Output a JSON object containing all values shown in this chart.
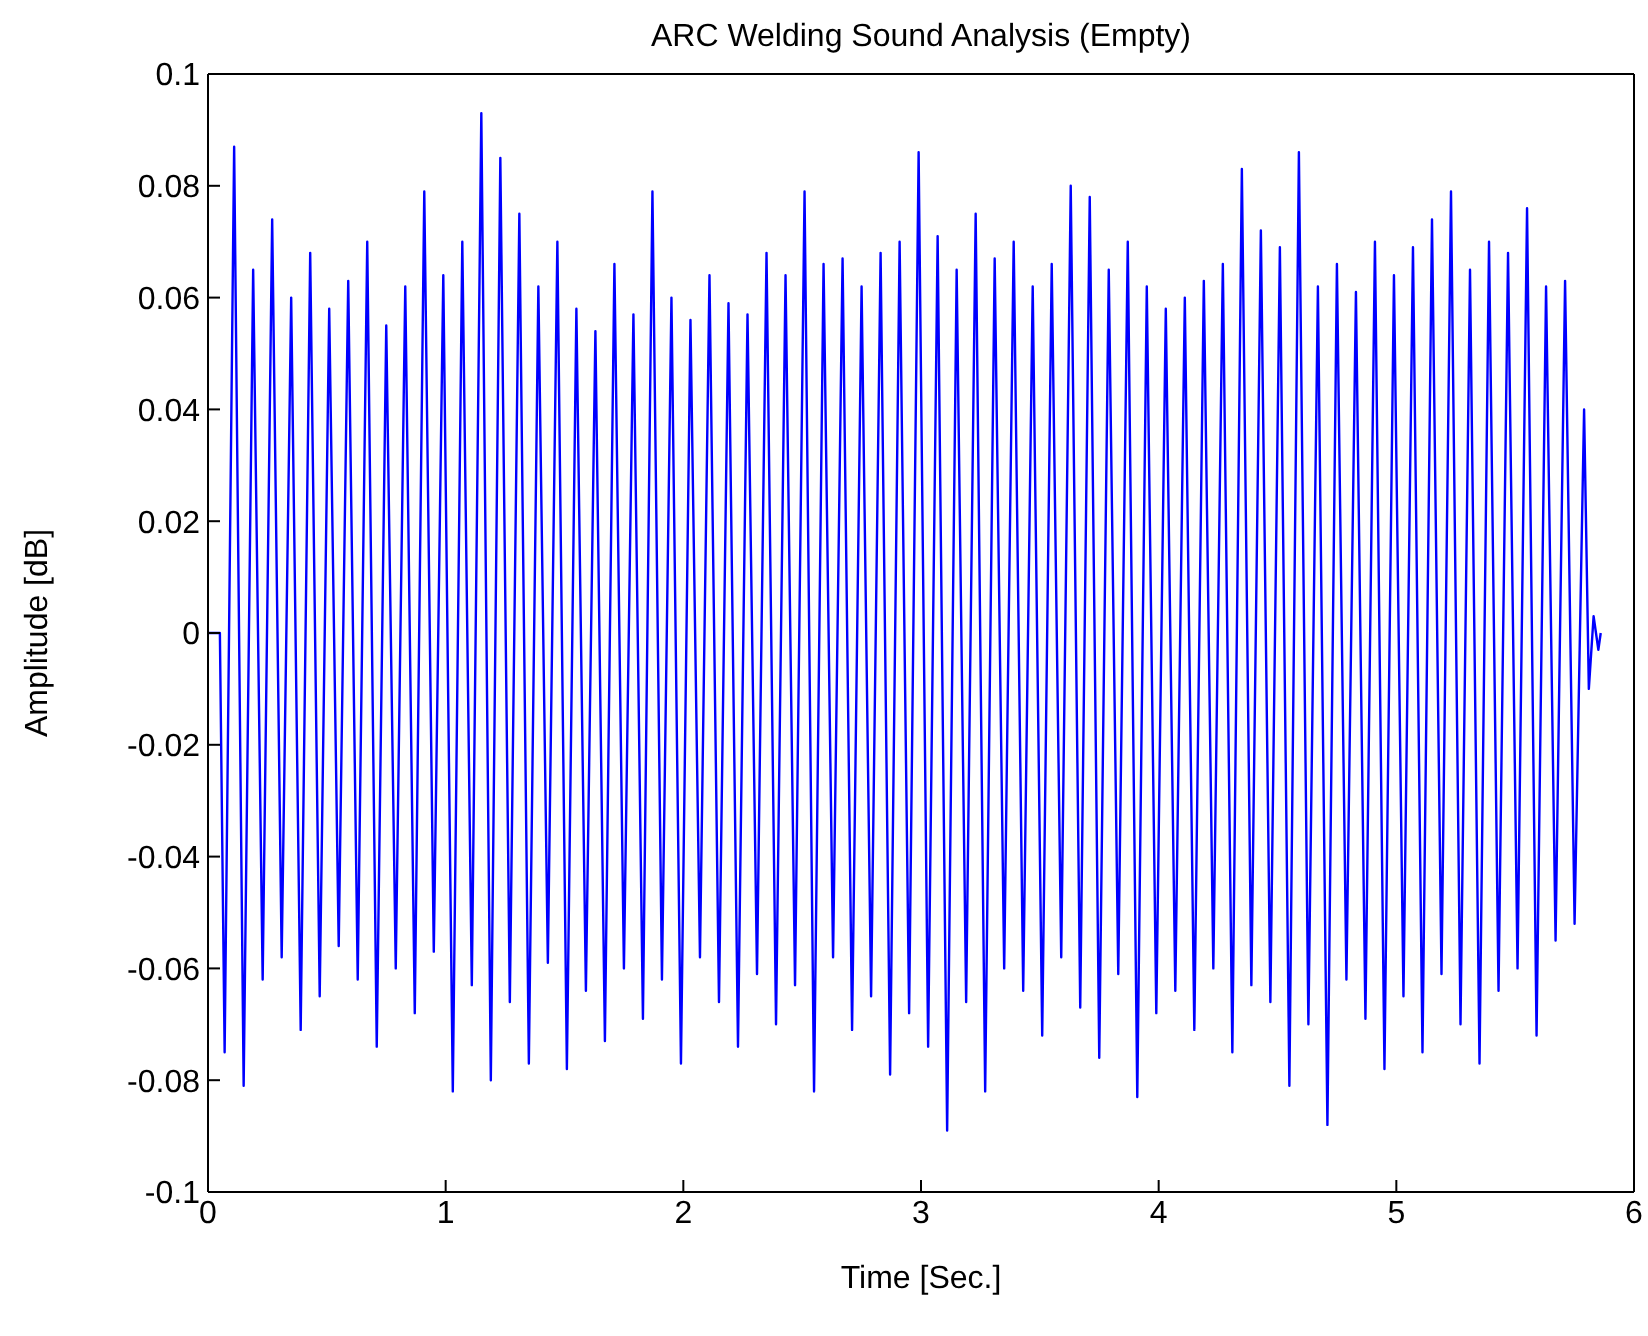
{
  "chart_data": {
    "type": "line",
    "title": "ARC Welding Sound Analysis (Empty)",
    "xlabel": "Time [Sec.]",
    "ylabel": "Amplitude [dB]",
    "xlim": [
      0,
      6
    ],
    "xticks": [
      0,
      1,
      2,
      3,
      4,
      5,
      6
    ],
    "ylim": [
      -0.1,
      0.1
    ],
    "yticks": [
      -0.1,
      -0.08,
      -0.06,
      -0.04,
      -0.02,
      0,
      0.02,
      0.04,
      0.06,
      0.08,
      0.1
    ],
    "legend": false,
    "marker": "none",
    "line_style": "solid",
    "series": [
      {
        "color": "#0000ff",
        "x": [
          0,
          0.05,
          0.07,
          0.11,
          0.15,
          0.19,
          0.23,
          0.27,
          0.31,
          0.35,
          0.39,
          0.43,
          0.47,
          0.51,
          0.55,
          0.59,
          0.63,
          0.67,
          0.71,
          0.75,
          0.79,
          0.83,
          0.87,
          0.91,
          0.95,
          0.99,
          1.03,
          1.07,
          1.11,
          1.15,
          1.19,
          1.23,
          1.27,
          1.31,
          1.35,
          1.39,
          1.43,
          1.47,
          1.51,
          1.55,
          1.59,
          1.63,
          1.67,
          1.71,
          1.75,
          1.79,
          1.83,
          1.87,
          1.91,
          1.95,
          1.99,
          2.03,
          2.07,
          2.11,
          2.15,
          2.19,
          2.23,
          2.27,
          2.31,
          2.35,
          2.39,
          2.43,
          2.47,
          2.51,
          2.55,
          2.59,
          2.63,
          2.67,
          2.71,
          2.75,
          2.79,
          2.83,
          2.87,
          2.91,
          2.95,
          2.99,
          3.03,
          3.07,
          3.11,
          3.15,
          3.19,
          3.23,
          3.27,
          3.31,
          3.35,
          3.39,
          3.43,
          3.47,
          3.51,
          3.55,
          3.59,
          3.63,
          3.67,
          3.71,
          3.75,
          3.79,
          3.83,
          3.87,
          3.91,
          3.95,
          3.99,
          4.03,
          4.07,
          4.11,
          4.15,
          4.19,
          4.23,
          4.27,
          4.31,
          4.35,
          4.39,
          4.43,
          4.47,
          4.51,
          4.55,
          4.59,
          4.63,
          4.67,
          4.71,
          4.75,
          4.79,
          4.83,
          4.87,
          4.91,
          4.95,
          4.99,
          5.03,
          5.07,
          5.11,
          5.15,
          5.19,
          5.23,
          5.27,
          5.31,
          5.35,
          5.39,
          5.43,
          5.47,
          5.51,
          5.55,
          5.59,
          5.63,
          5.67,
          5.71,
          5.75,
          5.79,
          5.81,
          5.83,
          5.85,
          5.86
        ],
        "values": [
          0,
          0,
          -0.075,
          0.087,
          -0.081,
          0.065,
          -0.062,
          0.074,
          -0.058,
          0.06,
          -0.071,
          0.068,
          -0.065,
          0.058,
          -0.056,
          0.063,
          -0.062,
          0.07,
          -0.074,
          0.055,
          -0.06,
          0.062,
          -0.068,
          0.079,
          -0.057,
          0.064,
          -0.082,
          0.07,
          -0.063,
          0.093,
          -0.08,
          0.085,
          -0.066,
          0.075,
          -0.077,
          0.062,
          -0.059,
          0.07,
          -0.078,
          0.058,
          -0.064,
          0.054,
          -0.073,
          0.066,
          -0.06,
          0.057,
          -0.069,
          0.079,
          -0.062,
          0.06,
          -0.077,
          0.056,
          -0.058,
          0.064,
          -0.066,
          0.059,
          -0.074,
          0.057,
          -0.061,
          0.068,
          -0.07,
          0.064,
          -0.063,
          0.079,
          -0.082,
          0.066,
          -0.058,
          0.067,
          -0.071,
          0.062,
          -0.065,
          0.068,
          -0.079,
          0.07,
          -0.068,
          0.086,
          -0.074,
          0.071,
          -0.089,
          0.065,
          -0.066,
          0.075,
          -0.082,
          0.067,
          -0.06,
          0.07,
          -0.064,
          0.062,
          -0.072,
          0.066,
          -0.058,
          0.08,
          -0.067,
          0.078,
          -0.076,
          0.065,
          -0.061,
          0.07,
          -0.083,
          0.062,
          -0.068,
          0.058,
          -0.064,
          0.06,
          -0.071,
          0.063,
          -0.06,
          0.066,
          -0.075,
          0.083,
          -0.063,
          0.072,
          -0.066,
          0.069,
          -0.081,
          0.086,
          -0.07,
          0.062,
          -0.088,
          0.066,
          -0.062,
          0.061,
          -0.069,
          0.07,
          -0.078,
          0.064,
          -0.065,
          0.069,
          -0.075,
          0.074,
          -0.061,
          0.079,
          -0.07,
          0.065,
          -0.077,
          0.07,
          -0.064,
          0.068,
          -0.06,
          0.076,
          -0.072,
          0.062,
          -0.055,
          0.063,
          -0.052,
          0.04,
          -0.01,
          0.003,
          -0.003,
          0
        ]
      }
    ]
  }
}
